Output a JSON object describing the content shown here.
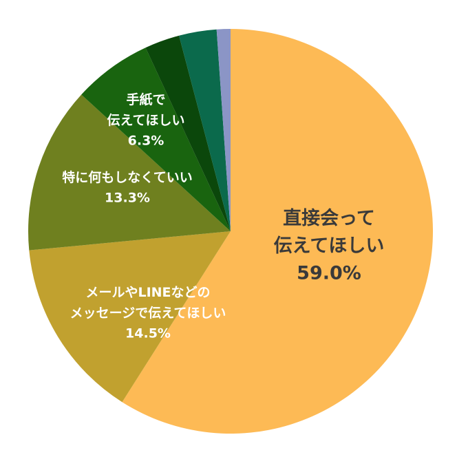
{
  "chart_data": {
    "type": "pie",
    "categories": [
      "直接会って\n伝えてほしい",
      "メールやLINEなどの\nメッセージで伝えてほしい",
      "特に何もしなくていい",
      "手紙で\n伝えてほしい",
      null,
      null,
      null
    ],
    "values": [
      59.0,
      14.5,
      13.3,
      6.3,
      2.8,
      3.0,
      1.1
    ],
    "value_labels": [
      "59.0%",
      "14.5%",
      "13.3%",
      "6.3%",
      null,
      null,
      null
    ],
    "colors": [
      "#fdba55",
      "#c1a12f",
      "#6f801f",
      "#19640f",
      "#0b470b",
      "#0b6a4c",
      "#8b95c6"
    ]
  }
}
